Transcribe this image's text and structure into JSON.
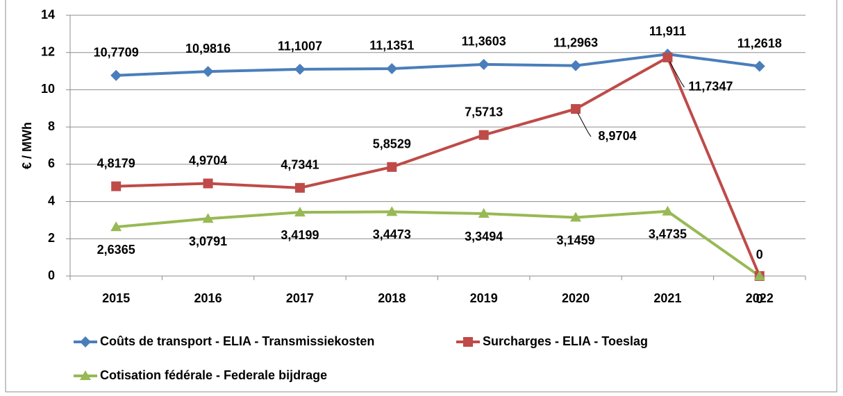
{
  "chart_data": {
    "type": "line",
    "ylabel": "€ / MWh",
    "categories": [
      "2015",
      "2016",
      "2017",
      "2018",
      "2019",
      "2020",
      "2021",
      "2022"
    ],
    "ylim": [
      0,
      14
    ],
    "yticks": [
      0,
      2,
      4,
      6,
      8,
      10,
      12,
      14
    ],
    "grid": true,
    "legend": "bottom",
    "series": [
      {
        "name": "Coûts de transport - ELIA - Transmissiekosten",
        "color": "#4a7ebb",
        "marker": "diamond",
        "values": [
          10.7709,
          10.9816,
          11.1007,
          11.1351,
          11.3603,
          11.2963,
          11.911,
          11.2618
        ],
        "value_labels": [
          "10,7709",
          "10,9816",
          "11,1007",
          "11,1351",
          "11,3603",
          "11,2963",
          "11,911",
          "11,2618"
        ]
      },
      {
        "name": "Surcharges - ELIA - Toeslag",
        "color": "#be4b48",
        "marker": "square",
        "values": [
          4.8179,
          4.9704,
          4.7341,
          5.8529,
          7.5713,
          8.9704,
          11.7347,
          0
        ],
        "value_labels": [
          "4,8179",
          "4,9704",
          "4,7341",
          "5,8529",
          "7,5713",
          "8,9704",
          "11,7347",
          "0"
        ]
      },
      {
        "name": "Cotisation fédérale - Federale bijdrage",
        "color": "#98b954",
        "marker": "triangle",
        "values": [
          2.6365,
          3.0791,
          3.4199,
          3.4473,
          3.3494,
          3.1459,
          3.4735,
          0
        ],
        "value_labels": [
          "2,6365",
          "3,0791",
          "3,4199",
          "3,4473",
          "3,3494",
          "3,1459",
          "3,4735",
          "0"
        ]
      }
    ]
  }
}
